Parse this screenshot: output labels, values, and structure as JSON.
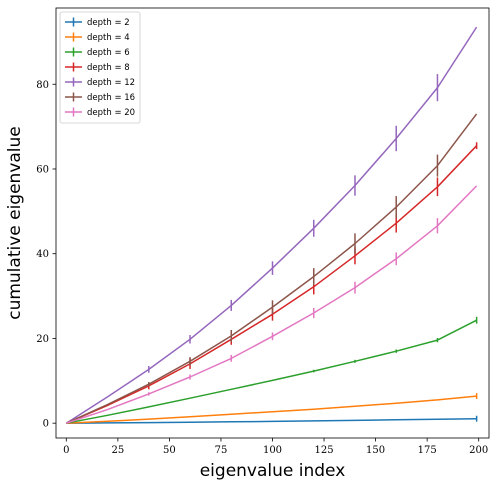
{
  "chart_data": {
    "type": "line",
    "xlabel": "eigenvalue index",
    "ylabel": "cumulative eigenvalue",
    "xlim": [
      -5,
      205
    ],
    "ylim": [
      -3.5,
      98
    ],
    "xticks": [
      0,
      25,
      50,
      75,
      100,
      125,
      150,
      175,
      200
    ],
    "yticks": [
      0,
      20,
      40,
      60,
      80
    ],
    "grid": false,
    "legend_position": "top-left",
    "x": [
      0,
      20,
      40,
      60,
      80,
      100,
      120,
      140,
      160,
      180,
      199
    ],
    "series": [
      {
        "name": "depth = 2",
        "color": "#1f77b4",
        "values": [
          0,
          0.06,
          0.14,
          0.23,
          0.33,
          0.43,
          0.54,
          0.66,
          0.79,
          0.93,
          1.05
        ],
        "errors": [
          0,
          0,
          0,
          0,
          0,
          0,
          0,
          0,
          0,
          0,
          0.7
        ]
      },
      {
        "name": "depth = 4",
        "color": "#ff7f0e",
        "values": [
          0,
          0.45,
          0.95,
          1.5,
          2.1,
          2.7,
          3.3,
          4.0,
          4.7,
          5.5,
          6.4
        ],
        "errors": [
          0,
          0,
          0,
          0,
          0,
          0,
          0,
          0,
          0,
          0,
          0.7
        ]
      },
      {
        "name": "depth = 6",
        "color": "#2ca02c",
        "values": [
          0,
          1.85,
          3.85,
          5.9,
          8.0,
          10.1,
          12.3,
          14.6,
          17.0,
          19.6,
          24.3
        ],
        "errors": [
          0,
          0,
          0,
          0,
          0,
          0,
          0.3,
          0.35,
          0.4,
          0.5,
          0.8
        ]
      },
      {
        "name": "depth = 8",
        "color": "#d62728",
        "values": [
          0,
          4.2,
          8.8,
          14.0,
          19.8,
          25.7,
          32.2,
          39.5,
          47.2,
          55.8,
          65.5
        ],
        "errors": [
          0,
          0,
          0.8,
          1.2,
          1.3,
          1.5,
          1.8,
          2.0,
          2.2,
          2.2,
          0.8
        ]
      },
      {
        "name": "depth = 12",
        "color": "#9467bd",
        "values": [
          0,
          6.2,
          12.7,
          19.8,
          27.8,
          36.6,
          46.0,
          56.1,
          67.2,
          79.2,
          93.5
        ],
        "errors": [
          0,
          0,
          0.8,
          1.0,
          1.3,
          1.6,
          2.0,
          2.4,
          3.0,
          3.2,
          0
        ]
      },
      {
        "name": "depth = 16",
        "color": "#8c564b",
        "values": [
          0,
          4.4,
          9.2,
          14.6,
          20.6,
          27.4,
          34.6,
          42.4,
          51.0,
          60.8,
          73.0
        ],
        "errors": [
          0,
          0,
          0.5,
          1.0,
          1.4,
          1.6,
          2.0,
          2.4,
          2.6,
          2.6,
          0
        ]
      },
      {
        "name": "depth = 20",
        "color": "#e377c2",
        "values": [
          0,
          3.2,
          6.9,
          10.9,
          15.3,
          20.5,
          26.0,
          32.0,
          38.8,
          46.6,
          56.0
        ],
        "errors": [
          0,
          0,
          0.4,
          0.6,
          0.8,
          0.9,
          1.2,
          1.4,
          1.5,
          1.8,
          0
        ]
      }
    ]
  }
}
